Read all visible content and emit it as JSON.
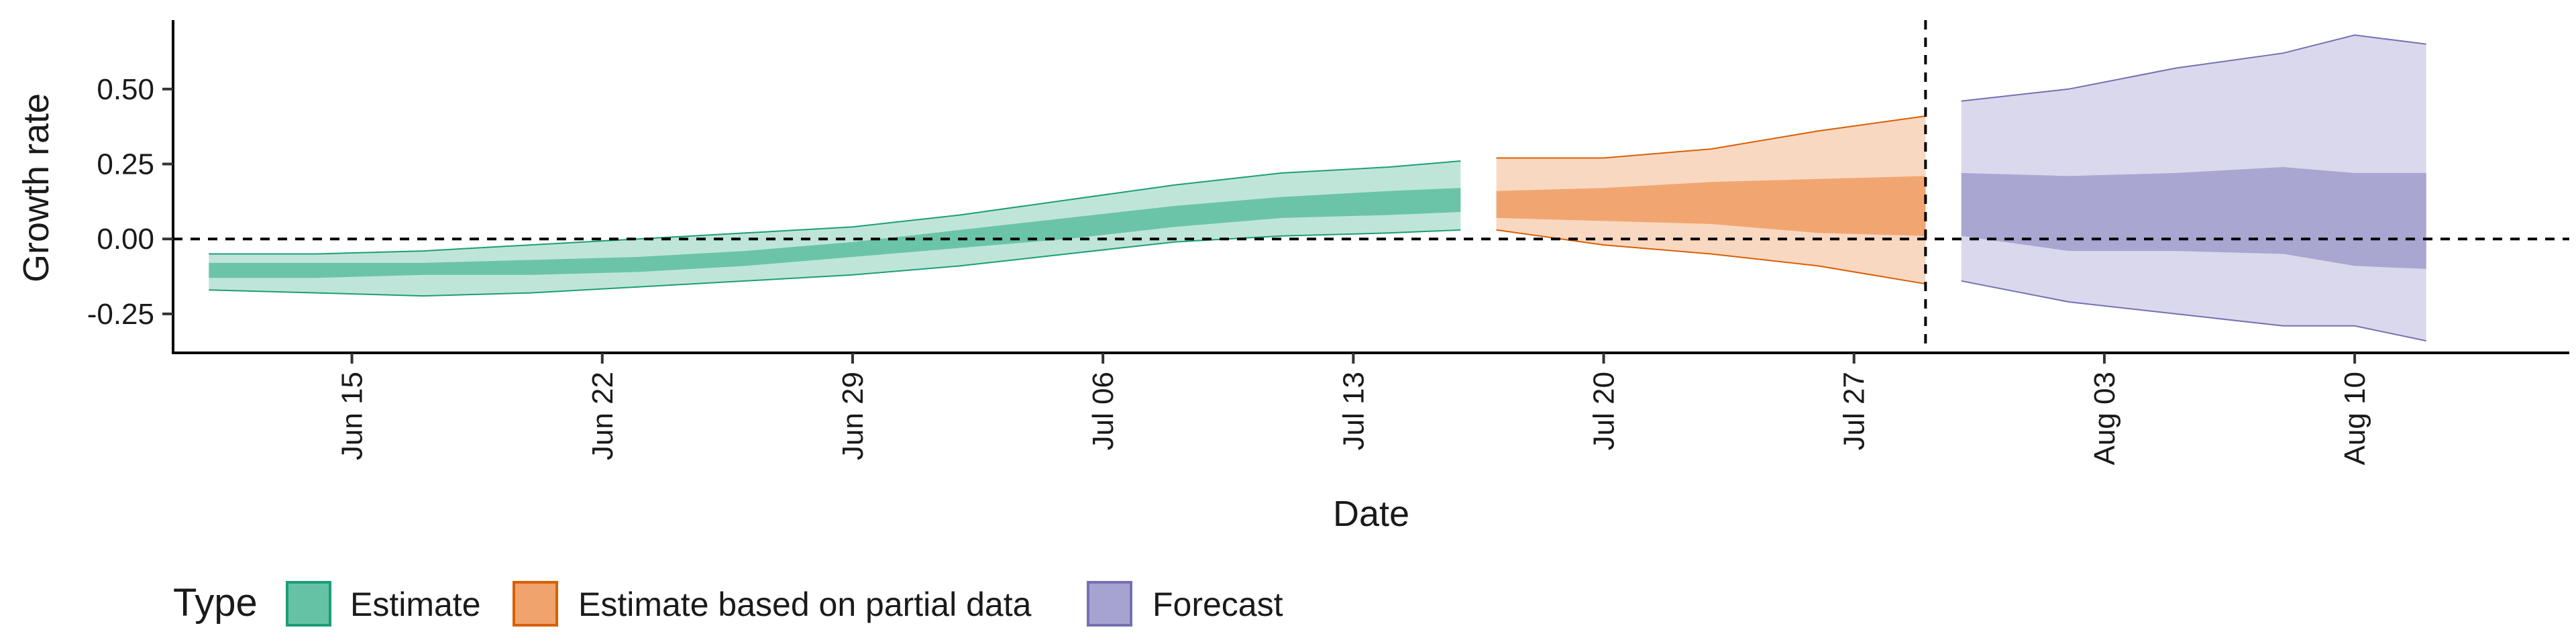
{
  "chart_data": {
    "type": "area",
    "title": "",
    "xlabel": "Date",
    "ylabel": "Growth rate",
    "x_tick_labels": [
      "Jun 15",
      "Jun 22",
      "Jun 29",
      "Jul 06",
      "Jul 13",
      "Jul 20",
      "Jul 27",
      "Aug 03",
      "Aug 10"
    ],
    "x_ticks": [
      "2020-06-15",
      "2020-06-22",
      "2020-06-29",
      "2020-07-06",
      "2020-07-13",
      "2020-07-20",
      "2020-07-27",
      "2020-08-03",
      "2020-08-10"
    ],
    "y_tick_labels": [
      "-0.25",
      "0.00",
      "0.25",
      "0.50"
    ],
    "y_ticks": [
      -0.25,
      0,
      0.25,
      0.5
    ],
    "xlim": [
      "2020-06-10",
      "2020-08-16"
    ],
    "ylim": [
      -0.38,
      0.73
    ],
    "grid": false,
    "reference_lines": [
      {
        "orientation": "horizontal",
        "value": 0,
        "style": "dashed"
      },
      {
        "orientation": "vertical",
        "value": "2020-07-29",
        "style": "dashed"
      }
    ],
    "legend": {
      "title": "Type",
      "placement": "bottom-left",
      "entries": [
        "Estimate",
        "Estimate based on partial data",
        "Forecast"
      ]
    },
    "series": [
      {
        "name": "Estimate",
        "color": "#1b9e77",
        "fill_color": "#66c2a5",
        "dates": [
          "2020-06-11",
          "2020-06-14",
          "2020-06-17",
          "2020-06-20",
          "2020-06-23",
          "2020-06-26",
          "2020-06-29",
          "2020-07-02",
          "2020-07-05",
          "2020-07-08",
          "2020-07-11",
          "2020-07-14",
          "2020-07-16"
        ],
        "outer_upper": [
          -0.05,
          -0.05,
          -0.04,
          -0.02,
          0.0,
          0.02,
          0.04,
          0.08,
          0.13,
          0.18,
          0.22,
          0.24,
          0.26
        ],
        "outer_lower": [
          -0.17,
          -0.18,
          -0.19,
          -0.18,
          -0.16,
          -0.14,
          -0.12,
          -0.09,
          -0.05,
          -0.01,
          0.01,
          0.02,
          0.03
        ],
        "inner_upper": [
          -0.08,
          -0.08,
          -0.08,
          -0.07,
          -0.06,
          -0.04,
          -0.01,
          0.03,
          0.07,
          0.11,
          0.14,
          0.16,
          0.17
        ],
        "inner_lower": [
          -0.13,
          -0.13,
          -0.12,
          -0.12,
          -0.11,
          -0.09,
          -0.06,
          -0.03,
          0.0,
          0.04,
          0.07,
          0.08,
          0.09
        ]
      },
      {
        "name": "Estimate based on partial data",
        "color": "#d95f02",
        "fill_color": "#f0a36d",
        "dates": [
          "2020-07-17",
          "2020-07-20",
          "2020-07-23",
          "2020-07-26",
          "2020-07-29"
        ],
        "outer_upper": [
          0.27,
          0.27,
          0.3,
          0.36,
          0.41
        ],
        "outer_lower": [
          0.03,
          -0.02,
          -0.05,
          -0.09,
          -0.15
        ],
        "inner_upper": [
          0.16,
          0.17,
          0.19,
          0.2,
          0.21
        ],
        "inner_lower": [
          0.07,
          0.06,
          0.05,
          0.02,
          0.01
        ]
      },
      {
        "name": "Forecast",
        "color": "#7570b3",
        "fill_color": "#a7a3d1",
        "dates": [
          "2020-07-30",
          "2020-08-02",
          "2020-08-05",
          "2020-08-08",
          "2020-08-10",
          "2020-08-12"
        ],
        "outer_upper": [
          0.46,
          0.5,
          0.57,
          0.62,
          0.68,
          0.65
        ],
        "outer_lower": [
          -0.14,
          -0.21,
          -0.25,
          -0.29,
          -0.29,
          -0.34
        ],
        "inner_upper": [
          0.22,
          0.21,
          0.22,
          0.24,
          0.22,
          0.22
        ],
        "inner_lower": [
          0.01,
          -0.04,
          -0.04,
          -0.05,
          -0.09,
          -0.1
        ]
      }
    ]
  }
}
